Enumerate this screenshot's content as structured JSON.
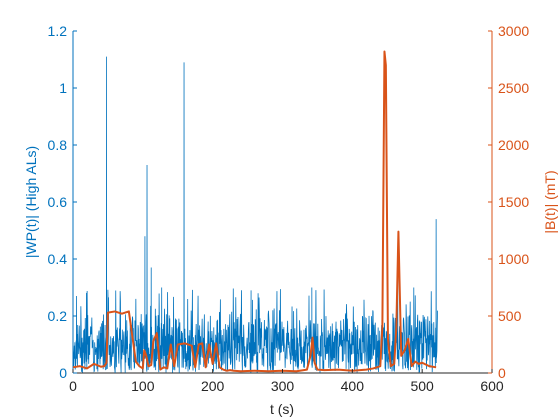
{
  "chart_data": {
    "type": "line",
    "title": "",
    "xlabel": "t (s)",
    "ylabel_left": "|WP(t)|  (High ALs)",
    "ylabel_right": "|B(t)|  (mT)",
    "xlim": [
      0,
      600
    ],
    "ylim_left": [
      0,
      1.2
    ],
    "ylim_right": [
      0,
      3000
    ],
    "xticks": [
      "0",
      "100",
      "200",
      "300",
      "400",
      "500",
      "600"
    ],
    "yticks_left": [
      "0",
      "0.2",
      "0.4",
      "0.6",
      "0.8",
      "1",
      "1.2"
    ],
    "yticks_right": [
      "0",
      "500",
      "1000",
      "1500",
      "2000",
      "2500",
      "3000"
    ],
    "colors": {
      "left": "#0072BD",
      "right": "#D95319",
      "axis_x": "#262626"
    },
    "grid": false,
    "series": [
      {
        "axis": "left",
        "color": "#0072BD",
        "baseline_range": [
          0.0,
          0.25
        ],
        "x_range": [
          0,
          522
        ],
        "note_peaks": "spikes at these x positions",
        "peaks": [
          [
            5,
            0.27
          ],
          [
            48,
            1.11
          ],
          [
            103,
            0.48
          ],
          [
            106,
            0.73
          ],
          [
            112,
            0.37
          ],
          [
            127,
            0.3
          ],
          [
            159,
            1.09
          ],
          [
            255,
            0.29
          ],
          [
            342,
            0.3
          ],
          [
            465,
            0.4
          ],
          [
            488,
            0.3
          ],
          [
            520,
            0.54
          ]
        ]
      },
      {
        "axis": "right",
        "color": "#D95319",
        "x": [
          0,
          10,
          20,
          30,
          40,
          45,
          48,
          50,
          60,
          70,
          80,
          90,
          95,
          100,
          102,
          105,
          108,
          112,
          115,
          120,
          125,
          130,
          135,
          140,
          145,
          150,
          160,
          170,
          175,
          180,
          185,
          190,
          195,
          200,
          205,
          210,
          215,
          220,
          225,
          230,
          240,
          260,
          280,
          300,
          320,
          335,
          340,
          343,
          346,
          350,
          360,
          380,
          400,
          420,
          430,
          440,
          443,
          446,
          448,
          451,
          455,
          460,
          463,
          466,
          470,
          475,
          480,
          485,
          490,
          495,
          500,
          510,
          520
        ],
        "values": [
          50,
          60,
          40,
          80,
          55,
          60,
          90,
          530,
          540,
          520,
          540,
          100,
          60,
          40,
          200,
          150,
          60,
          70,
          280,
          350,
          30,
          50,
          40,
          250,
          60,
          250,
          260,
          240,
          50,
          250,
          260,
          50,
          250,
          80,
          260,
          50,
          30,
          20,
          25,
          20,
          15,
          20,
          15,
          20,
          15,
          30,
          150,
          310,
          90,
          30,
          25,
          30,
          20,
          30,
          40,
          60,
          400,
          2820,
          2700,
          300,
          60,
          80,
          400,
          1240,
          150,
          200,
          300,
          60,
          100,
          80,
          90,
          60,
          50
        ]
      }
    ]
  }
}
